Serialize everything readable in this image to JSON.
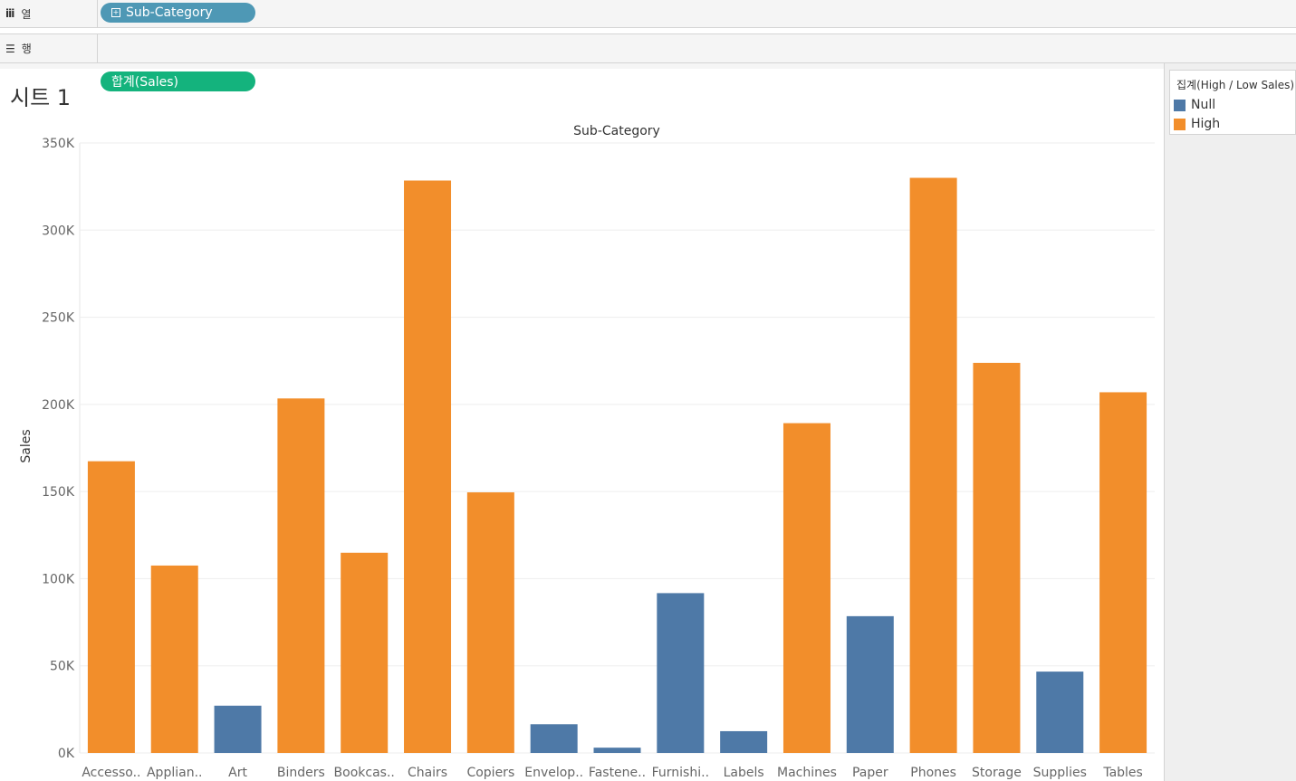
{
  "shelves": {
    "columns": {
      "icon": "iii",
      "label": "열",
      "pill": "Sub-Category",
      "pill_icon": "plus-box-icon"
    },
    "rows": {
      "icon": "☰",
      "label": "행",
      "pill": "합계(Sales)"
    }
  },
  "sheet": {
    "title": "시트 1"
  },
  "legend": {
    "title": "집계(High / Low Sales)",
    "items": [
      {
        "label": "Null",
        "color": "#4e79a7"
      },
      {
        "label": "High",
        "color": "#f28e2b"
      }
    ]
  },
  "chart_data": {
    "type": "bar",
    "title": "Sub-Category",
    "xlabel": "",
    "ylabel": "Sales",
    "ylim": [
      0,
      350000
    ],
    "yticks": [
      0,
      50000,
      100000,
      150000,
      200000,
      250000,
      300000,
      350000
    ],
    "ytick_labels": [
      "0K",
      "50K",
      "100K",
      "150K",
      "200K",
      "250K",
      "300K",
      "350K"
    ],
    "categories": [
      "Accesso..",
      "Applian..",
      "Art",
      "Binders",
      "Bookcas..",
      "Chairs",
      "Copiers",
      "Envelop..",
      "Fastene..",
      "Furnishi..",
      "Labels",
      "Machines",
      "Paper",
      "Phones",
      "Storage",
      "Supplies",
      "Tables"
    ],
    "values": [
      167380,
      107532,
      27119,
      203413,
      114880,
      328449,
      149528,
      16476,
      3024,
      91705,
      12486,
      189239,
      78479,
      330007,
      223844,
      46674,
      206966
    ],
    "groups": [
      "High",
      "High",
      "Null",
      "High",
      "High",
      "High",
      "High",
      "Null",
      "Null",
      "Null",
      "Null",
      "High",
      "Null",
      "High",
      "High",
      "Null",
      "High"
    ],
    "colors": {
      "Null": "#4e79a7",
      "High": "#f28e2b"
    },
    "grid": true
  }
}
